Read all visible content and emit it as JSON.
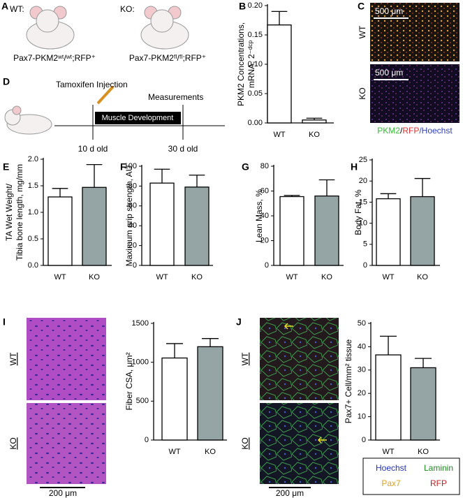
{
  "panel_labels": [
    "A",
    "B",
    "C",
    "D",
    "E",
    "F",
    "G",
    "H",
    "I",
    "J"
  ],
  "panel_a": {
    "wt_tag": "WT:",
    "ko_tag": "KO:",
    "wt_genotype": "Pax7-PKM2ʷᵗ/ʷᵗ;RFP⁺",
    "ko_genotype": "Pax7-PKM2ᶠˡ/ᶠˡ;RFP⁺"
  },
  "panel_c": {
    "wt": "WT",
    "ko": "KO",
    "scale_wt": "500 μm",
    "scale_ko": "500 μm",
    "legend": [
      "PKM2",
      "/",
      "RFP",
      "/Hoechst"
    ]
  },
  "panel_d": {
    "injection": "Tamoxifen Injection",
    "measurements": "Measurements",
    "phase": "Muscle Development",
    "start": "10 d old",
    "end": "30 d old"
  },
  "panel_i": {
    "wt": "WT",
    "ko": "KO",
    "scale": "200 μm"
  },
  "panel_j": {
    "wt": "WT",
    "ko": "KO",
    "scale": "200 μm",
    "legend": [
      "Hoechst",
      "Laminin",
      "Pax7",
      "RFP"
    ]
  },
  "chart_data": [
    {
      "type": "bar",
      "ylabel": [
        "PKM2 Concentrations,",
        "mRNA, 2⁻ᵈᶜᵖ"
      ],
      "categories": [
        "WT",
        "KO"
      ],
      "values": [
        0.167,
        0.005
      ],
      "errors": [
        0.023,
        0.003
      ],
      "colors": [
        "#ffffff",
        "#ffffff"
      ],
      "ylim": [
        0,
        0.2
      ],
      "yticks": [
        {
          "value": 0,
          "label": "0.00"
        },
        0.05,
        {
          "value": 0.1,
          "label": "0.10"
        },
        0.15,
        {
          "value": 0.2,
          "label": "0.20"
        }
      ]
    },
    {
      "type": "bar",
      "ylabel": [
        "TA Wet Weight/",
        "Tibia bone length, mg/mm"
      ],
      "categories": [
        "WT",
        "KO"
      ],
      "values": [
        1.29,
        1.47
      ],
      "errors": [
        0.16,
        0.43
      ],
      "colors": [
        "#ffffff",
        "#95a5a6"
      ],
      "ylim": [
        0,
        2
      ],
      "yticks": [
        {
          "value": 0,
          "label": "0.0"
        },
        0.5,
        {
          "value": 1,
          "label": "1.0"
        },
        1.5,
        {
          "value": 2,
          "label": "2.0"
        }
      ]
    },
    {
      "type": "bar",
      "ylabel": [
        "Maximum grip strength, AU"
      ],
      "categories": [
        "WT",
        "KO"
      ],
      "values": [
        83,
        79
      ],
      "errors": [
        14,
        12
      ],
      "colors": [
        "#ffffff",
        "#95a5a6"
      ],
      "ylim": [
        0,
        100
      ],
      "yticks": [
        0,
        20,
        40,
        60,
        80,
        100
      ]
    },
    {
      "type": "bar",
      "ylabel": [
        "Lean Mass, %"
      ],
      "categories": [
        "WT",
        "KO"
      ],
      "values": [
        55.5,
        56
      ],
      "errors": [
        1,
        13
      ],
      "colors": [
        "#ffffff",
        "#95a5a6"
      ],
      "ylim": [
        0,
        80
      ],
      "yticks": [
        0,
        20,
        40,
        60,
        80
      ]
    },
    {
      "type": "bar",
      "ylabel": [
        "Body Fat, %"
      ],
      "categories": [
        "WT",
        "KO"
      ],
      "values": [
        15.8,
        16.3
      ],
      "errors": [
        1.2,
        4.3
      ],
      "colors": [
        "#ffffff",
        "#95a5a6"
      ],
      "ylim": [
        0,
        25
      ],
      "yticks": [
        0,
        5,
        10,
        15,
        20,
        25
      ]
    },
    {
      "type": "bar",
      "ylabel": [
        "Fiber CSA, μm²"
      ],
      "categories": [
        "WT",
        "KO"
      ],
      "values": [
        1055,
        1200
      ],
      "errors": [
        185,
        105
      ],
      "colors": [
        "#ffffff",
        "#95a5a6"
      ],
      "ylim": [
        0,
        1500
      ],
      "yticks": [
        0,
        500,
        1000,
        1500
      ]
    },
    {
      "type": "bar",
      "ylabel": [
        "Pax7+ Cell/mm² tissue"
      ],
      "categories": [
        "WT",
        "KO"
      ],
      "values": [
        36.5,
        31
      ],
      "errors": [
        8,
        4
      ],
      "colors": [
        "#ffffff",
        "#95a5a6"
      ],
      "ylim": [
        0,
        50
      ],
      "yticks": [
        0,
        10,
        20,
        30,
        40,
        50
      ]
    }
  ]
}
